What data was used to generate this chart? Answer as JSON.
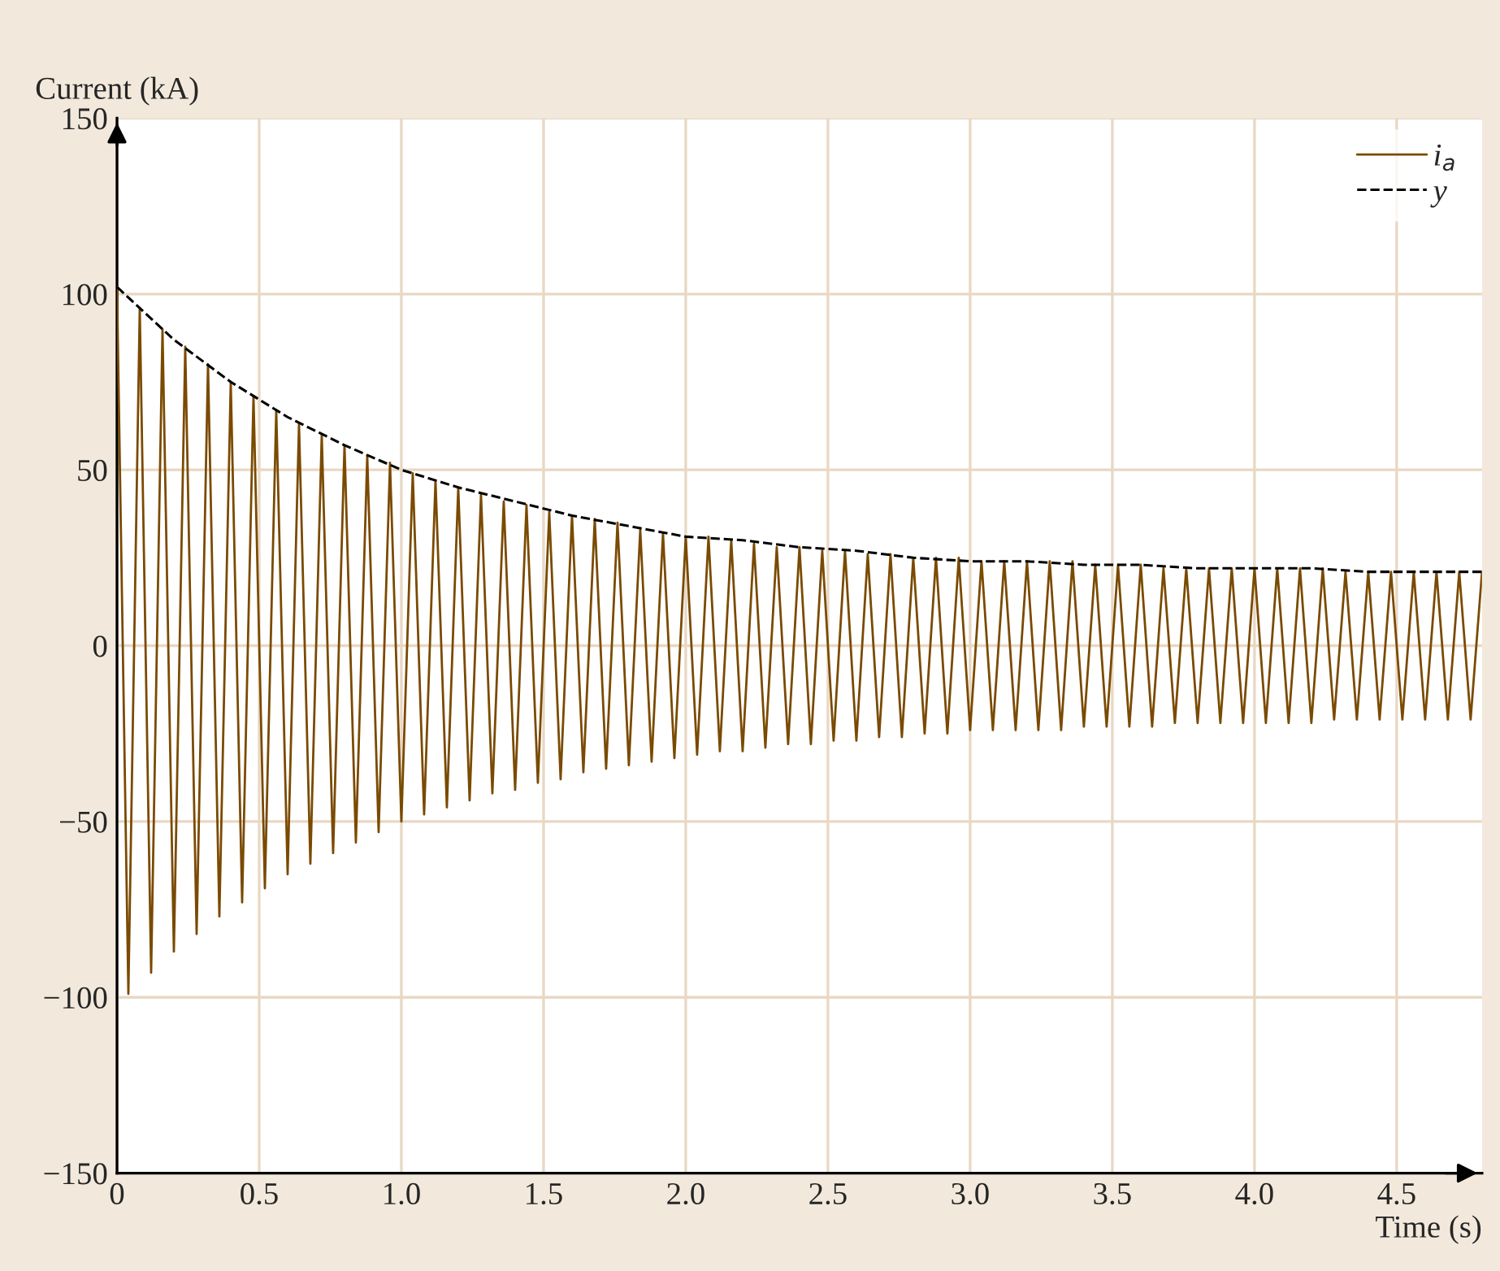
{
  "chart_data": {
    "type": "line",
    "xlabel": "Time (s)",
    "ylabel": "Current (kA)",
    "xlim": [
      0,
      4.8
    ],
    "xticks": [
      0,
      0.5,
      {
        "value": 1.0,
        "label": "1.0"
      },
      1.5,
      {
        "value": 2.0,
        "label": "2.0"
      },
      2.5,
      {
        "value": 3.0,
        "label": "3.0"
      },
      3.5,
      {
        "value": 4.0,
        "label": "4.0"
      },
      4.5
    ],
    "ylim": [
      -150,
      150
    ],
    "yticks": [
      {
        "value": -150,
        "label": "−150"
      },
      {
        "value": -100,
        "label": "−100"
      },
      {
        "value": -50,
        "label": "−50"
      },
      0,
      50,
      100,
      150
    ],
    "grid": true,
    "legend": "top right",
    "series": [
      {
        "name": "i$_{a}$",
        "color": "#7a4a00",
        "line_style": "solid",
        "x": [
          0,
          0.04,
          0.08,
          0.12,
          0.16,
          0.2,
          0.24,
          0.28,
          0.32,
          0.36,
          0.4,
          0.44,
          0.48,
          0.52,
          0.56,
          0.6,
          0.64,
          0.68,
          0.72,
          0.76,
          0.8,
          0.84,
          0.88,
          0.92,
          0.96,
          1.0,
          1.04,
          1.08,
          1.12,
          1.16,
          1.2,
          1.24,
          1.28,
          1.32,
          1.36,
          1.4,
          1.44,
          1.48,
          1.52,
          1.56,
          1.6,
          1.64,
          1.68,
          1.72,
          1.76,
          1.8,
          1.84,
          1.88,
          1.92,
          1.96,
          2.0,
          2.04,
          2.08,
          2.12,
          2.16,
          2.2,
          2.24,
          2.28,
          2.32,
          2.36,
          2.4,
          2.44,
          2.48,
          2.52,
          2.56,
          2.6,
          2.64,
          2.68,
          2.72,
          2.76,
          2.8,
          2.84,
          2.88,
          2.92,
          2.96,
          3.0,
          3.04,
          3.08,
          3.12,
          3.16,
          3.2,
          3.24,
          3.28,
          3.32,
          3.36,
          3.4,
          3.44,
          3.48,
          3.52,
          3.56,
          3.6,
          3.64,
          3.68,
          3.72,
          3.76,
          3.8,
          3.84,
          3.88,
          3.92,
          3.96,
          4.0,
          4.04,
          4.08,
          4.12,
          4.16,
          4.2,
          4.24,
          4.28,
          4.32,
          4.36,
          4.4,
          4.44,
          4.48,
          4.52,
          4.56,
          4.6,
          4.64,
          4.68,
          4.72,
          4.76,
          4.8
        ],
        "values": [
          102,
          -99,
          96,
          -93,
          90,
          -87,
          85,
          -82,
          80,
          -77,
          75,
          -73,
          71,
          -69,
          67,
          -65,
          63,
          -62,
          60,
          -59,
          57,
          -56,
          54,
          -53,
          52,
          -50,
          49,
          -48,
          47,
          -46,
          45,
          -44,
          43,
          -42,
          41,
          -41,
          40,
          -39,
          38,
          -38,
          37,
          -36,
          36,
          -35,
          35,
          -34,
          33,
          -33,
          32,
          -32,
          31,
          -31,
          31,
          -30,
          30,
          -30,
          29,
          -29,
          28,
          -28,
          28,
          -28,
          27,
          -27,
          27,
          -27,
          26,
          -26,
          26,
          -26,
          25,
          -25,
          25,
          -25,
          25,
          -24,
          24,
          -24,
          24,
          -24,
          24,
          -24,
          24,
          -24,
          24,
          -23,
          23,
          -23,
          23,
          -23,
          23,
          -23,
          22,
          -22,
          22,
          -22,
          22,
          -22,
          22,
          -22,
          22,
          -22,
          22,
          -22,
          22,
          -22,
          22,
          -21,
          21,
          -21,
          21,
          -21,
          21,
          -21,
          21,
          -21,
          21,
          -21,
          21,
          -21,
          21
        ]
      },
      {
        "name": "y",
        "color": "#000000",
        "line_style": "dashed",
        "x": [
          0,
          0.2,
          0.4,
          0.6,
          0.8,
          1.0,
          1.2,
          1.4,
          1.6,
          1.8,
          2.0,
          2.2,
          2.4,
          2.6,
          2.8,
          3.0,
          3.2,
          3.4,
          3.6,
          3.8,
          4.0,
          4.2,
          4.4,
          4.6,
          4.8
        ],
        "values": [
          102,
          87,
          75,
          65,
          57,
          50,
          45,
          41,
          37,
          34,
          31,
          30,
          28,
          27,
          25,
          24,
          24,
          23,
          23,
          22,
          22,
          22,
          21,
          21,
          21
        ]
      }
    ]
  }
}
